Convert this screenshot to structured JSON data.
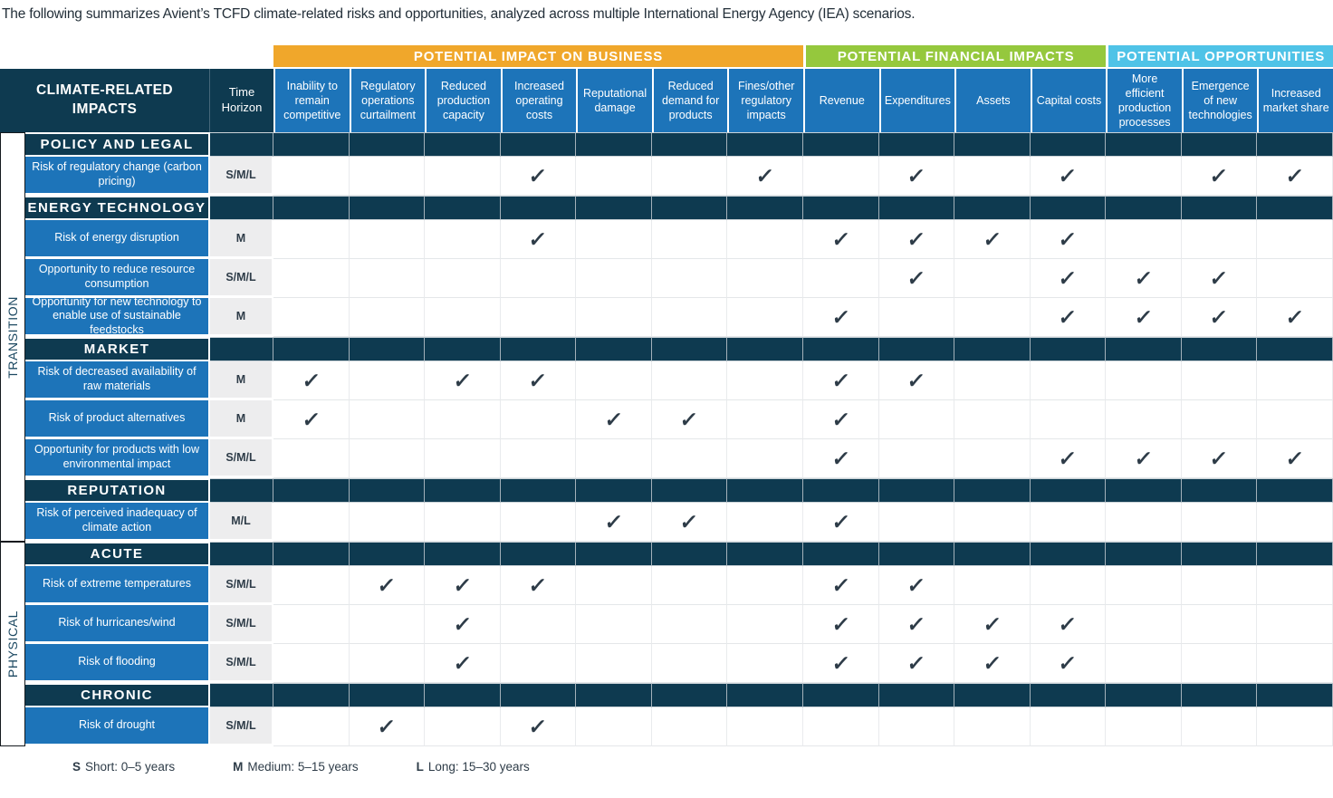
{
  "intro": "The following summarizes Avient’s TCFD climate-related risks and opportunities, analyzed across multiple International Energy Agency (IEA) scenarios.",
  "colors": {
    "orange": "#f0a72b",
    "green": "#95c83d",
    "cyan": "#4fc3e7",
    "navy": "#0e3a50",
    "blue": "#1d74b9",
    "time_cell_gray": "#ededee",
    "check": "#2e3c48"
  },
  "table": {
    "corner_header": "CLIMATE-RELATED IMPACTS",
    "time_horizon_header": "Time Horizon",
    "check_glyph": "✓",
    "groups": [
      {
        "label": "POTENTIAL IMPACT ON BUSINESS",
        "color_key": "orange",
        "span": 7
      },
      {
        "label": "POTENTIAL FINANCIAL IMPACTS",
        "color_key": "green",
        "span": 4
      },
      {
        "label": "POTENTIAL OPPORTUNITIES",
        "color_key": "cyan",
        "span": 3
      }
    ],
    "columns": [
      "Inability to remain competitive",
      "Regulatory operations curtailment",
      "Reduced production capacity",
      "Increased operating costs",
      "Reputational damage",
      "Reduced demand for products",
      "Fines/other regulatory impacts",
      "Revenue",
      "Expenditures",
      "Assets",
      "Capital costs",
      "More efficient production processes",
      "Emergence of new technologies",
      "Increased market share"
    ],
    "side_groups": [
      {
        "label": "TRANSITION"
      },
      {
        "label": "PHYSICAL"
      }
    ],
    "sections": [
      {
        "name": "POLICY AND LEGAL",
        "side": "TRANSITION",
        "rows": [
          {
            "label": "Risk of regulatory change (carbon pricing)",
            "time_horizon": "S/M/L",
            "checks": [
              4,
              7,
              9,
              11,
              13,
              14
            ]
          }
        ]
      },
      {
        "name": "ENERGY TECHNOLOGY",
        "side": "TRANSITION",
        "rows": [
          {
            "label": "Risk of energy disruption",
            "time_horizon": "M",
            "checks": [
              4,
              8,
              9,
              10,
              11
            ]
          },
          {
            "label": "Opportunity to reduce resource consumption",
            "time_horizon": "S/M/L",
            "checks": [
              9,
              11,
              12,
              13
            ]
          },
          {
            "label": "Opportunity for new technology to enable use of sustainable feedstocks",
            "time_horizon": "M",
            "checks": [
              8,
              11,
              12,
              13,
              14
            ]
          }
        ]
      },
      {
        "name": "MARKET",
        "side": "TRANSITION",
        "rows": [
          {
            "label": "Risk of decreased availability of raw materials",
            "time_horizon": "M",
            "checks": [
              1,
              3,
              4,
              8,
              9
            ]
          },
          {
            "label": "Risk of product alternatives",
            "time_horizon": "M",
            "checks": [
              1,
              5,
              6,
              8
            ]
          },
          {
            "label": "Opportunity for products with low environmental impact",
            "time_horizon": "S/M/L",
            "checks": [
              8,
              11,
              12,
              13,
              14
            ]
          }
        ]
      },
      {
        "name": "REPUTATION",
        "side": "TRANSITION",
        "rows": [
          {
            "label": "Risk of perceived inadequacy of climate action",
            "time_horizon": "M/L",
            "checks": [
              5,
              6,
              8
            ]
          }
        ]
      },
      {
        "name": "ACUTE",
        "side": "PHYSICAL",
        "rows": [
          {
            "label": "Risk of extreme temperatures",
            "time_horizon": "S/M/L",
            "checks": [
              2,
              3,
              4,
              8,
              9
            ]
          },
          {
            "label": "Risk of hurricanes/wind",
            "time_horizon": "S/M/L",
            "checks": [
              3,
              8,
              9,
              10,
              11
            ]
          },
          {
            "label": "Risk of flooding",
            "time_horizon": "S/M/L",
            "checks": [
              3,
              8,
              9,
              10,
              11
            ]
          }
        ]
      },
      {
        "name": "CHRONIC",
        "side": "PHYSICAL",
        "rows": [
          {
            "label": "Risk of drought",
            "time_horizon": "S/M/L",
            "checks": [
              2,
              4
            ]
          }
        ]
      }
    ]
  },
  "legend": [
    {
      "key": "S",
      "text": "Short: 0–5 years"
    },
    {
      "key": "M",
      "text": "Medium: 5–15 years"
    },
    {
      "key": "L",
      "text": "Long: 15–30 years"
    }
  ]
}
